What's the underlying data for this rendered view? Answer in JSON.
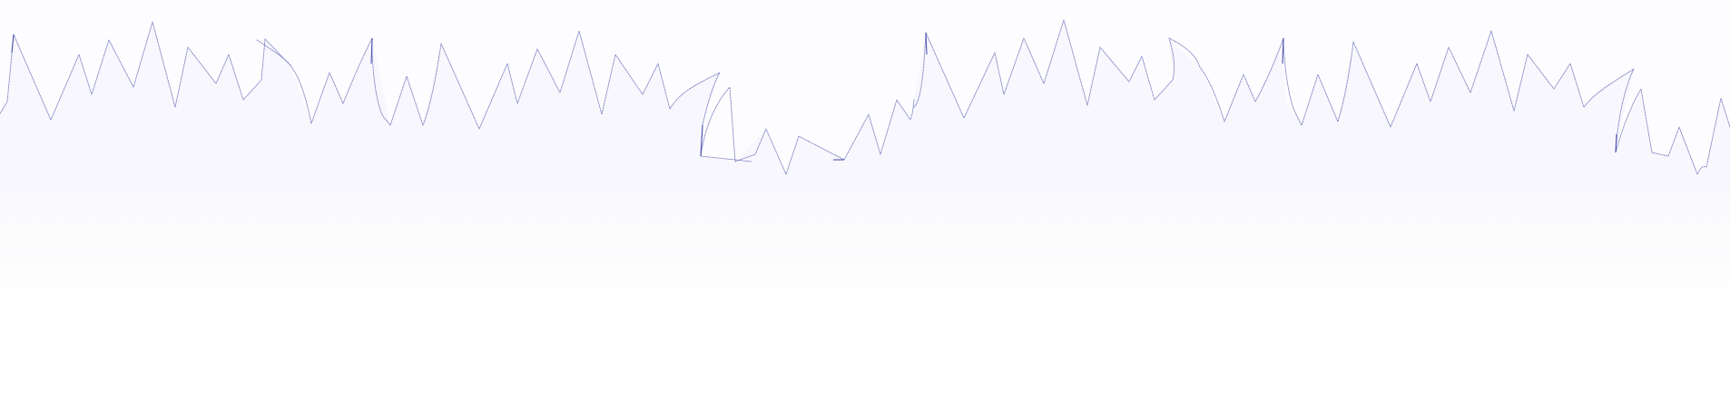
{
  "colors": {
    "background": "#ffffff",
    "area_fill": "#f8f7fd",
    "line": "#6f74b8",
    "line_dark": "#3d43a6"
  }
}
